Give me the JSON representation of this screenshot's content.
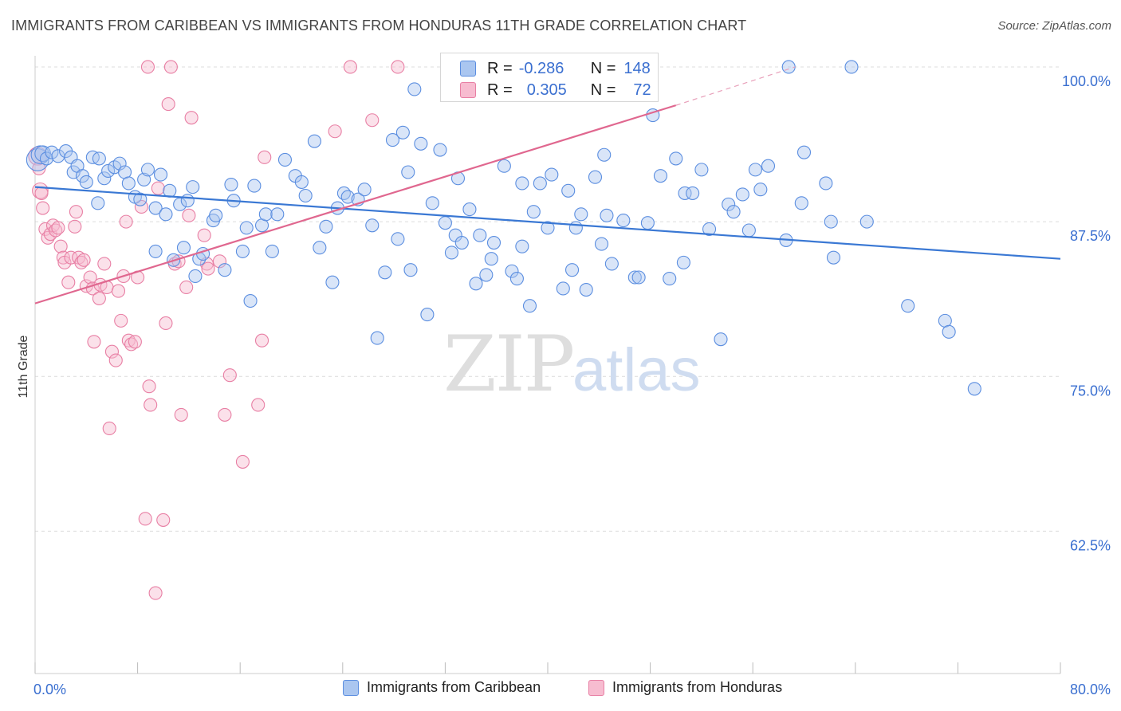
{
  "title": "IMMIGRANTS FROM CARIBBEAN VS IMMIGRANTS FROM HONDURAS 11TH GRADE CORRELATION CHART",
  "source": "Source: ZipAtlas.com",
  "watermark": {
    "zip": "ZIP",
    "atlas": "atlas"
  },
  "legend": {
    "r_label": "R =",
    "n_label": "N =",
    "rows": [
      {
        "r": "-0.286",
        "n": "148"
      },
      {
        "r": "0.305",
        "n": "72"
      }
    ]
  },
  "chart_data": {
    "type": "scatter",
    "title": "IMMIGRANTS FROM CARIBBEAN VS IMMIGRANTS FROM HONDURAS 11TH GRADE CORRELATION CHART",
    "xlabel": "",
    "ylabel": "11th Grade",
    "xlim": [
      0,
      80
    ],
    "ylim": [
      51,
      100.9
    ],
    "x_tick_labels": [
      "0.0%",
      "80.0%"
    ],
    "y_ticks": [
      62.5,
      75.0,
      87.5,
      100.0
    ],
    "y_tick_labels": [
      "62.5%",
      "75.0%",
      "87.5%",
      "100.0%"
    ],
    "grid": true,
    "legend_position": "top-center",
    "series": [
      {
        "name": "Immigrants from Caribbean",
        "color": "#5b8ee0",
        "fill": "#aac6f0",
        "trend": {
          "x": [
            0,
            80
          ],
          "y": [
            90.3,
            84.5
          ]
        },
        "points": [
          [
            0.2,
            92.5,
            3
          ],
          [
            0.4,
            92.9,
            2
          ],
          [
            0.6,
            93.0,
            1.5
          ],
          [
            0.9,
            92.6,
            1
          ],
          [
            1.3,
            93.1,
            1
          ],
          [
            1.8,
            92.8,
            1
          ],
          [
            2.4,
            93.2,
            1
          ],
          [
            2.8,
            92.7,
            1
          ],
          [
            3.0,
            91.5,
            1
          ],
          [
            3.3,
            92.0,
            1
          ],
          [
            3.7,
            91.2,
            1
          ],
          [
            4.0,
            90.7,
            1
          ],
          [
            4.5,
            92.7,
            1
          ],
          [
            5.0,
            92.6,
            1
          ],
          [
            5.4,
            91.0,
            1
          ],
          [
            5.7,
            91.6,
            1
          ],
          [
            6.2,
            91.9,
            1
          ],
          [
            6.6,
            92.2,
            1
          ],
          [
            7.0,
            91.5,
            1
          ],
          [
            7.3,
            90.6,
            1
          ],
          [
            7.8,
            89.5,
            1
          ],
          [
            8.2,
            89.3,
            1
          ],
          [
            8.5,
            90.9,
            1
          ],
          [
            8.8,
            91.7,
            1
          ],
          [
            9.4,
            88.6,
            1
          ],
          [
            9.8,
            91.3,
            1
          ],
          [
            10.2,
            88.1,
            1
          ],
          [
            10.5,
            90.0,
            1
          ],
          [
            11.3,
            88.9,
            1
          ],
          [
            11.9,
            89.2,
            1
          ],
          [
            12.3,
            90.3,
            1
          ],
          [
            4.9,
            89.0,
            1
          ],
          [
            9.4,
            85.1,
            1
          ],
          [
            10.8,
            84.4,
            1
          ],
          [
            11.6,
            85.4,
            1
          ],
          [
            12.5,
            83.1,
            1
          ],
          [
            12.8,
            84.5,
            1
          ],
          [
            13.1,
            84.9,
            1
          ],
          [
            13.9,
            87.6,
            1
          ],
          [
            14.1,
            88.0,
            1
          ],
          [
            14.8,
            83.6,
            1
          ],
          [
            15.3,
            90.5,
            1
          ],
          [
            15.5,
            89.2,
            1
          ],
          [
            16.2,
            85.1,
            1
          ],
          [
            16.5,
            87.0,
            1
          ],
          [
            17.1,
            90.4,
            1
          ],
          [
            17.7,
            87.2,
            1
          ],
          [
            18.0,
            88.1,
            1
          ],
          [
            18.5,
            85.1,
            1
          ],
          [
            18.9,
            88.1,
            1
          ],
          [
            16.8,
            81.1,
            1
          ],
          [
            19.5,
            92.5,
            1
          ],
          [
            20.3,
            91.2,
            1
          ],
          [
            20.8,
            90.7,
            1
          ],
          [
            21.1,
            89.6,
            1
          ],
          [
            21.8,
            94.0,
            1
          ],
          [
            22.2,
            85.4,
            1
          ],
          [
            22.7,
            87.1,
            1
          ],
          [
            23.2,
            82.6,
            1
          ],
          [
            23.6,
            88.6,
            1
          ],
          [
            24.1,
            89.8,
            1
          ],
          [
            24.4,
            89.5,
            1
          ],
          [
            25.2,
            89.3,
            1
          ],
          [
            25.7,
            90.1,
            1
          ],
          [
            26.3,
            87.2,
            1
          ],
          [
            26.7,
            78.1,
            1
          ],
          [
            27.3,
            83.4,
            1
          ],
          [
            27.9,
            94.1,
            1
          ],
          [
            28.3,
            86.1,
            1
          ],
          [
            28.7,
            94.7,
            1
          ],
          [
            29.1,
            91.5,
            1
          ],
          [
            29.3,
            83.6,
            1
          ],
          [
            29.6,
            98.2,
            1
          ],
          [
            30.1,
            93.8,
            1
          ],
          [
            30.6,
            80.0,
            1
          ],
          [
            31.0,
            89.0,
            1
          ],
          [
            31.6,
            93.3,
            1
          ],
          [
            32.0,
            87.4,
            1
          ],
          [
            32.5,
            85.0,
            1
          ],
          [
            32.8,
            86.4,
            1
          ],
          [
            33.0,
            91.0,
            1
          ],
          [
            33.3,
            85.8,
            1
          ],
          [
            33.9,
            88.5,
            1
          ],
          [
            34.4,
            82.5,
            1
          ],
          [
            34.7,
            86.4,
            1
          ],
          [
            35.2,
            83.2,
            1
          ],
          [
            35.6,
            84.5,
            1
          ],
          [
            35.8,
            85.8,
            1
          ],
          [
            36.6,
            92.0,
            1
          ],
          [
            37.2,
            83.5,
            1
          ],
          [
            37.6,
            82.9,
            1
          ],
          [
            38.0,
            90.6,
            1
          ],
          [
            38.6,
            80.7,
            1
          ],
          [
            38.9,
            88.3,
            1
          ],
          [
            39.4,
            90.6,
            1
          ],
          [
            40.0,
            87.0,
            1
          ],
          [
            40.3,
            91.3,
            1
          ],
          [
            41.2,
            82.1,
            1
          ],
          [
            41.6,
            90.0,
            1
          ],
          [
            42.2,
            87.0,
            1
          ],
          [
            42.6,
            88.1,
            1
          ],
          [
            43.7,
            91.1,
            1
          ],
          [
            44.2,
            85.7,
            1
          ],
          [
            44.4,
            92.9,
            1
          ],
          [
            44.6,
            88.0,
            1
          ],
          [
            45.0,
            84.1,
            1
          ],
          [
            45.9,
            87.6,
            1
          ],
          [
            46.8,
            83.0,
            1
          ],
          [
            47.1,
            83.0,
            1
          ],
          [
            47.8,
            87.4,
            1
          ],
          [
            48.2,
            96.1,
            1
          ],
          [
            48.8,
            91.2,
            1
          ],
          [
            49.5,
            82.9,
            1
          ],
          [
            50.0,
            92.6,
            1
          ],
          [
            50.7,
            89.8,
            1
          ],
          [
            51.3,
            89.8,
            1
          ],
          [
            52.0,
            91.7,
            1
          ],
          [
            52.6,
            86.9,
            1
          ],
          [
            53.5,
            78.0,
            1
          ],
          [
            54.1,
            88.9,
            1
          ],
          [
            54.5,
            88.3,
            1
          ],
          [
            55.2,
            89.7,
            1
          ],
          [
            55.7,
            86.8,
            1
          ],
          [
            56.2,
            91.7,
            1
          ],
          [
            56.6,
            90.1,
            1
          ],
          [
            57.2,
            92.0,
            1
          ],
          [
            58.6,
            86.0,
            1
          ],
          [
            58.8,
            100.0,
            1
          ],
          [
            59.8,
            89.0,
            1
          ],
          [
            61.7,
            90.6,
            1
          ],
          [
            62.1,
            87.5,
            1
          ],
          [
            62.3,
            84.6,
            1
          ],
          [
            63.7,
            100.0,
            1
          ],
          [
            64.9,
            87.5,
            1
          ],
          [
            68.1,
            80.7,
            1
          ],
          [
            71.0,
            79.5,
            1
          ],
          [
            71.3,
            78.6,
            1
          ],
          [
            73.3,
            74.0,
            1
          ],
          [
            41.9,
            83.6,
            1
          ],
          [
            38.0,
            85.5,
            1
          ],
          [
            50.6,
            84.2,
            1
          ],
          [
            60.0,
            93.1,
            1
          ],
          [
            43.0,
            82.0,
            1
          ]
        ]
      },
      {
        "name": "Immigrants from Honduras",
        "color": "#e87fa4",
        "fill": "#f7bcd0",
        "trend": {
          "x": [
            0,
            50
          ],
          "y": [
            80.9,
            96.9
          ]
        },
        "trend_ext": {
          "x": [
            50,
            59.3
          ],
          "y": [
            96.9,
            100.0
          ]
        },
        "points": [
          [
            0.2,
            92.8,
            2
          ],
          [
            0.3,
            91.8,
            1
          ],
          [
            0.4,
            90.0,
            1.5
          ],
          [
            0.5,
            89.8,
            1
          ],
          [
            0.6,
            88.6,
            1
          ],
          [
            0.8,
            86.9,
            1
          ],
          [
            1.0,
            86.2,
            1
          ],
          [
            1.2,
            86.5,
            1
          ],
          [
            1.4,
            87.2,
            1
          ],
          [
            1.6,
            86.8,
            1
          ],
          [
            1.8,
            87.0,
            1
          ],
          [
            2.0,
            85.5,
            1
          ],
          [
            2.2,
            84.6,
            1
          ],
          [
            2.3,
            84.2,
            1
          ],
          [
            2.6,
            82.6,
            1
          ],
          [
            2.8,
            84.6,
            1
          ],
          [
            3.1,
            87.1,
            1
          ],
          [
            3.2,
            88.3,
            1
          ],
          [
            3.4,
            84.6,
            1
          ],
          [
            3.6,
            84.2,
            1
          ],
          [
            3.8,
            84.4,
            1
          ],
          [
            4.0,
            82.3,
            1
          ],
          [
            4.3,
            83.0,
            1
          ],
          [
            4.5,
            82.1,
            1
          ],
          [
            4.6,
            77.8,
            1
          ],
          [
            5.0,
            81.3,
            1
          ],
          [
            5.1,
            82.4,
            1
          ],
          [
            5.4,
            84.1,
            1
          ],
          [
            5.6,
            82.2,
            1
          ],
          [
            5.8,
            70.8,
            1
          ],
          [
            6.0,
            77.0,
            1
          ],
          [
            6.3,
            76.3,
            1
          ],
          [
            6.5,
            81.9,
            1
          ],
          [
            6.7,
            79.5,
            1
          ],
          [
            6.9,
            83.1,
            1
          ],
          [
            7.1,
            87.5,
            1
          ],
          [
            7.3,
            77.9,
            1
          ],
          [
            7.5,
            77.6,
            1
          ],
          [
            7.8,
            77.8,
            1
          ],
          [
            8.0,
            83.0,
            1
          ],
          [
            8.3,
            88.7,
            1
          ],
          [
            8.6,
            63.5,
            1
          ],
          [
            8.8,
            100.0,
            1
          ],
          [
            8.9,
            74.2,
            1
          ],
          [
            9.0,
            72.7,
            1
          ],
          [
            9.4,
            57.5,
            1
          ],
          [
            9.6,
            90.2,
            1
          ],
          [
            10.0,
            63.4,
            1
          ],
          [
            10.2,
            79.3,
            1
          ],
          [
            10.4,
            97.0,
            1
          ],
          [
            10.6,
            100.0,
            1
          ],
          [
            10.9,
            84.1,
            1
          ],
          [
            11.2,
            84.3,
            1
          ],
          [
            11.4,
            71.9,
            1
          ],
          [
            11.8,
            82.2,
            1
          ],
          [
            12.0,
            88.0,
            1
          ],
          [
            12.2,
            95.9,
            1
          ],
          [
            13.2,
            86.4,
            1
          ],
          [
            13.4,
            84.1,
            1
          ],
          [
            13.5,
            83.7,
            1
          ],
          [
            14.4,
            84.3,
            1
          ],
          [
            14.8,
            71.9,
            1
          ],
          [
            15.2,
            75.1,
            1
          ],
          [
            16.2,
            68.1,
            1
          ],
          [
            17.4,
            72.7,
            1
          ],
          [
            17.7,
            77.9,
            1
          ],
          [
            17.9,
            92.7,
            1
          ],
          [
            23.4,
            94.8,
            1
          ],
          [
            24.6,
            100.0,
            1
          ],
          [
            26.3,
            95.7,
            1
          ],
          [
            28.3,
            100.0,
            1
          ],
          [
            41.6,
            100.0,
            1
          ]
        ]
      }
    ]
  }
}
